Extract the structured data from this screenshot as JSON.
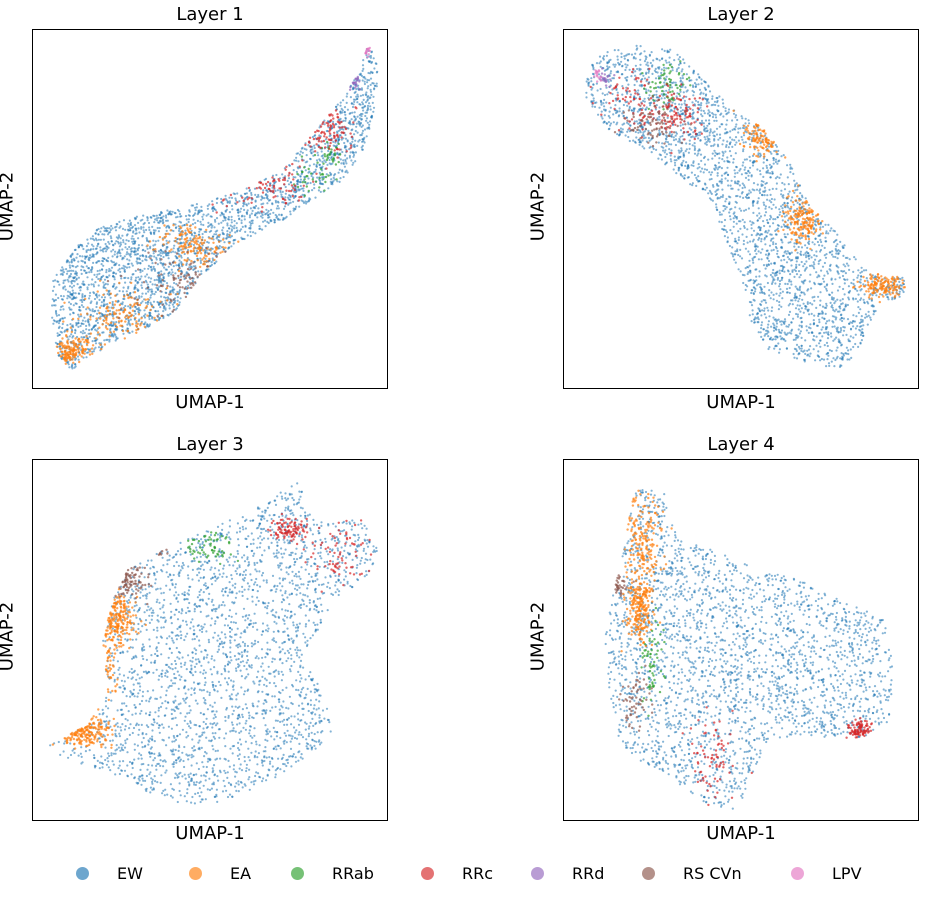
{
  "chart_data": [
    {
      "type": "scatter",
      "title": "Layer 1",
      "xlabel": "UMAP-1",
      "ylabel": "UMAP-2",
      "xticks": [],
      "yticks": [],
      "grid": false,
      "point_counts": {
        "EW": 2600,
        "EA": 420,
        "RRab": 60,
        "RRc": 170,
        "RRd": 20,
        "RS CVn": 90,
        "LPV": 15
      }
    },
    {
      "type": "scatter",
      "title": "Layer 2",
      "xlabel": "UMAP-1",
      "ylabel": "UMAP-2",
      "xticks": [],
      "yticks": [],
      "grid": false,
      "point_counts": {
        "EW": 2600,
        "EA": 420,
        "RRab": 60,
        "RRc": 170,
        "RRd": 20,
        "RS CVn": 90,
        "LPV": 15
      }
    },
    {
      "type": "scatter",
      "title": "Layer 3",
      "xlabel": "UMAP-1",
      "ylabel": "UMAP-2",
      "xticks": [],
      "yticks": [],
      "grid": false,
      "point_counts": {
        "EW": 2600,
        "EA": 420,
        "RRab": 60,
        "RRc": 170,
        "RRd": 20,
        "RS CVn": 90,
        "LPV": 15
      }
    },
    {
      "type": "scatter",
      "title": "Layer 4",
      "xlabel": "UMAP-1",
      "ylabel": "UMAP-2",
      "xticks": [],
      "yticks": [],
      "grid": false,
      "point_counts": {
        "EW": 2600,
        "EA": 420,
        "RRab": 60,
        "RRc": 170,
        "RRd": 20,
        "RS CVn": 90,
        "LPV": 15
      }
    }
  ],
  "legend": {
    "placement": "bottom-center",
    "entries": [
      {
        "name": "EW",
        "color": "#1f77b4"
      },
      {
        "name": "EA",
        "color": "#ff7f0e"
      },
      {
        "name": "RRab",
        "color": "#2ca02c"
      },
      {
        "name": "RRc",
        "color": "#d62728"
      },
      {
        "name": "RRd",
        "color": "#9467bd"
      },
      {
        "name": "RS CVn",
        "color": "#8c564b"
      },
      {
        "name": "LPV",
        "color": "#e377c2"
      }
    ]
  }
}
